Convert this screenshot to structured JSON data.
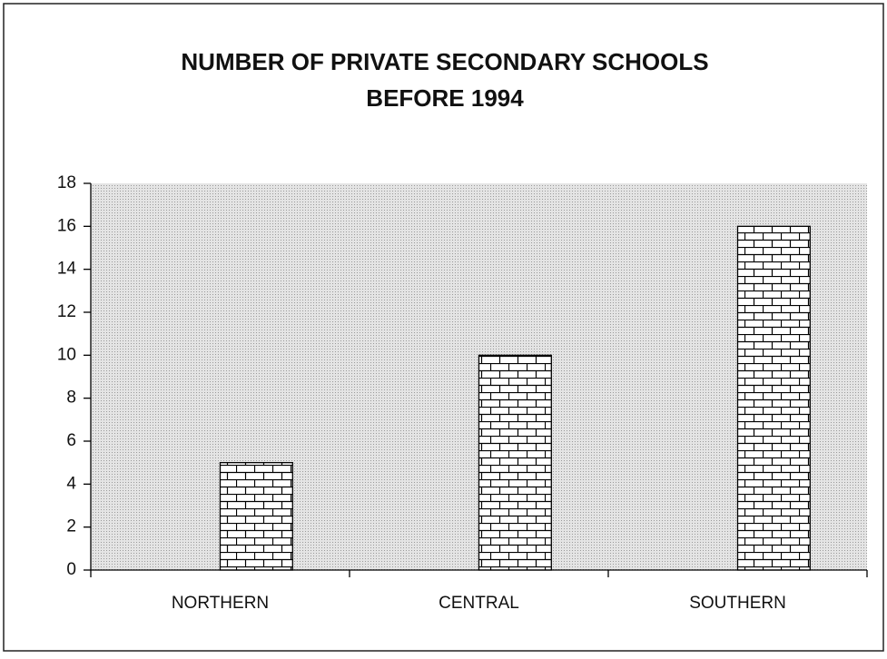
{
  "chart_data": {
    "type": "bar",
    "title": [
      "NUMBER OF PRIVATE SECONDARY SCHOOLS",
      "BEFORE 1994"
    ],
    "categories": [
      "NORTHERN",
      "CENTRAL",
      "SOUTHERN"
    ],
    "values": [
      5,
      10,
      16
    ],
    "color": "#ffffff",
    "ylim": [
      0,
      18
    ],
    "yticks": [
      0,
      2,
      4,
      6,
      8,
      10,
      12,
      14,
      16,
      18
    ],
    "grid": false
  }
}
